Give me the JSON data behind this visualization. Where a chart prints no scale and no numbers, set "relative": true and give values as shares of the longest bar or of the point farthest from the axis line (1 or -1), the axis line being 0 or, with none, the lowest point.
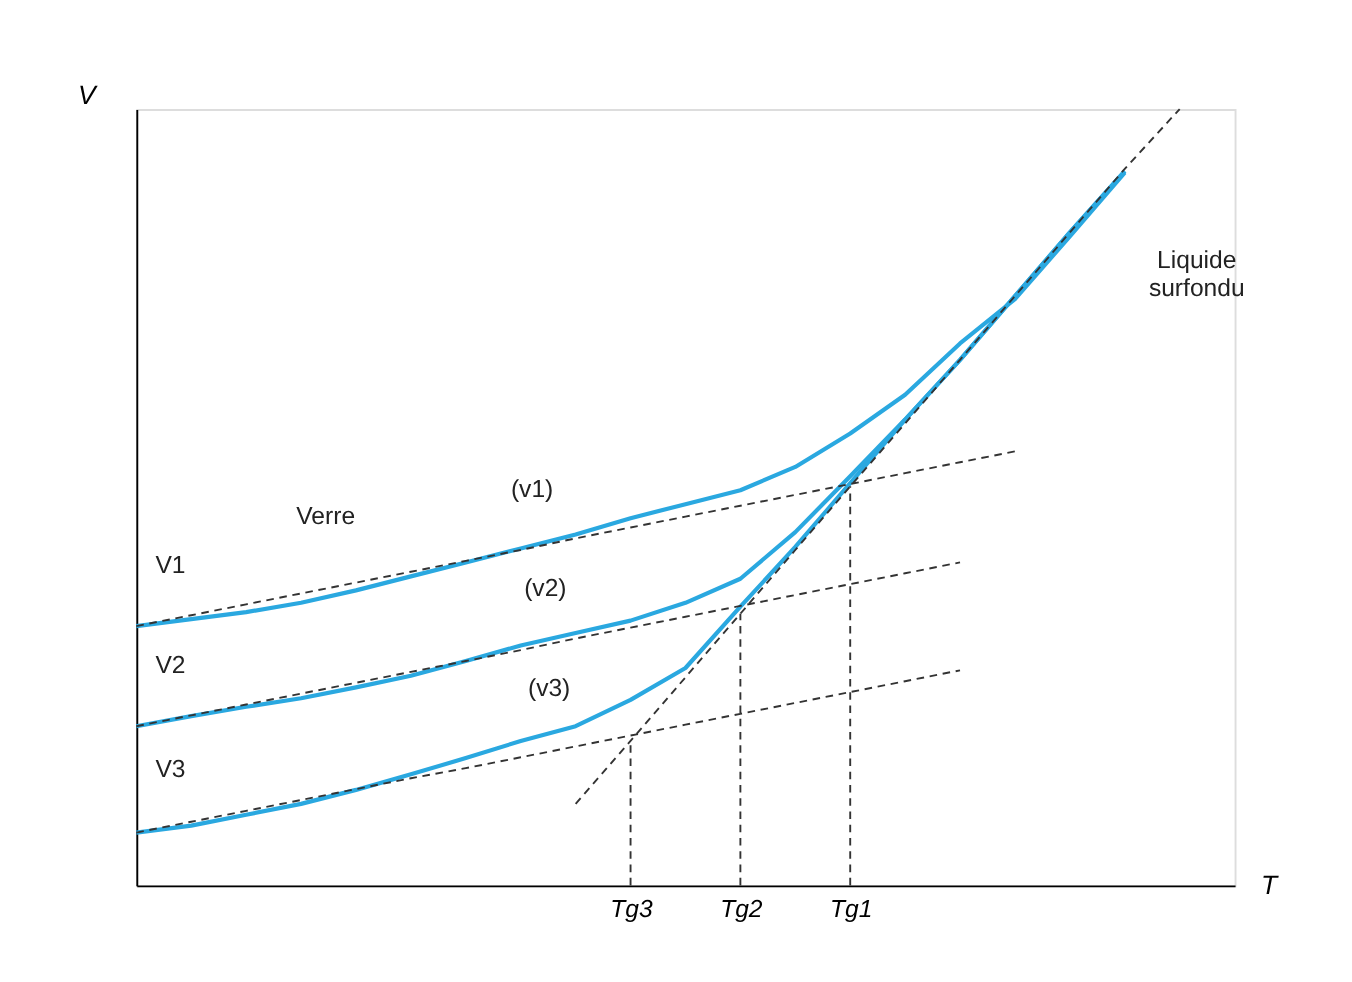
{
  "chart_data": {
    "type": "line",
    "relative": true,
    "xlabel": "T",
    "ylabel": "V",
    "categories": [
      null,
      null,
      null,
      null,
      null,
      null,
      null,
      null,
      null,
      "Tg3",
      null,
      "Tg2",
      null,
      "Tg1",
      null,
      null,
      null,
      null,
      null,
      null,
      null
    ],
    "ref_lines": [
      {
        "axis": "x",
        "value": "Tg3",
        "line_style": "dashed",
        "color": "#333333"
      },
      {
        "axis": "x",
        "value": "Tg2",
        "line_style": "dashed",
        "color": "#333333"
      },
      {
        "axis": "x",
        "value": "Tg1",
        "line_style": "dashed",
        "color": "#333333"
      }
    ],
    "series": [
      {
        "line_style": "solid",
        "color": "#2aa8e0",
        "values": [
          0.334,
          0.343,
          0.352,
          0.364,
          0.38,
          0.398,
          0.416,
          0.434,
          0.452,
          0.473,
          0.491,
          0.509,
          0.539,
          0.582,
          0.632,
          0.698,
          0.755,
          0.836,
          0.918,
          null,
          null
        ]
      },
      {
        "line_style": "solid",
        "color": "#2aa8e0",
        "values": [
          0.205,
          0.218,
          0.23,
          0.241,
          0.255,
          0.27,
          0.289,
          0.309,
          0.325,
          0.341,
          0.364,
          0.395,
          0.455,
          0.527,
          0.6,
          0.677,
          0.759,
          0.841,
          0.92,
          null,
          null
        ]
      },
      {
        "line_style": "solid",
        "color": "#2aa8e0",
        "values": [
          0.068,
          0.077,
          0.091,
          0.105,
          0.123,
          0.143,
          0.164,
          0.186,
          0.205,
          0.239,
          0.28,
          0.359,
          0.436,
          0.518,
          0.6,
          0.677,
          0.759,
          0.841,
          0.92,
          null,
          null
        ]
      },
      {
        "line_style": "dashed",
        "color": "#333333",
        "values": [
          0.334,
          0.348,
          0.362,
          0.376,
          0.39,
          0.404,
          0.418,
          0.432,
          0.447,
          0.461,
          0.475,
          0.489,
          0.503,
          0.517,
          0.531,
          0.545,
          0.559,
          null,
          null,
          null,
          null
        ]
      },
      {
        "line_style": "dashed",
        "color": "#333333",
        "values": [
          0.205,
          0.219,
          0.233,
          0.247,
          0.261,
          0.275,
          0.289,
          0.303,
          0.318,
          0.332,
          0.346,
          0.36,
          0.374,
          0.388,
          0.402,
          0.416,
          null,
          null,
          null,
          null,
          null
        ]
      },
      {
        "line_style": "dashed",
        "color": "#333333",
        "values": [
          0.068,
          0.082,
          0.096,
          0.11,
          0.124,
          0.138,
          0.151,
          0.165,
          0.179,
          0.193,
          0.207,
          0.221,
          0.235,
          0.249,
          0.263,
          0.277,
          null,
          null,
          null,
          null,
          null
        ]
      },
      {
        "line_style": "dashed",
        "color": "#333333",
        "values": [
          null,
          null,
          null,
          null,
          null,
          null,
          null,
          null,
          0.105,
          0.186,
          0.268,
          0.35,
          0.432,
          0.514,
          0.595,
          0.677,
          0.759,
          0.841,
          0.923,
          1.0,
          null
        ]
      }
    ],
    "annotations": [
      "Verre",
      "(v1)",
      "(v2)",
      "(v3)",
      "Liquide\nsurfondu",
      "V1",
      "V2",
      "V3"
    ]
  }
}
